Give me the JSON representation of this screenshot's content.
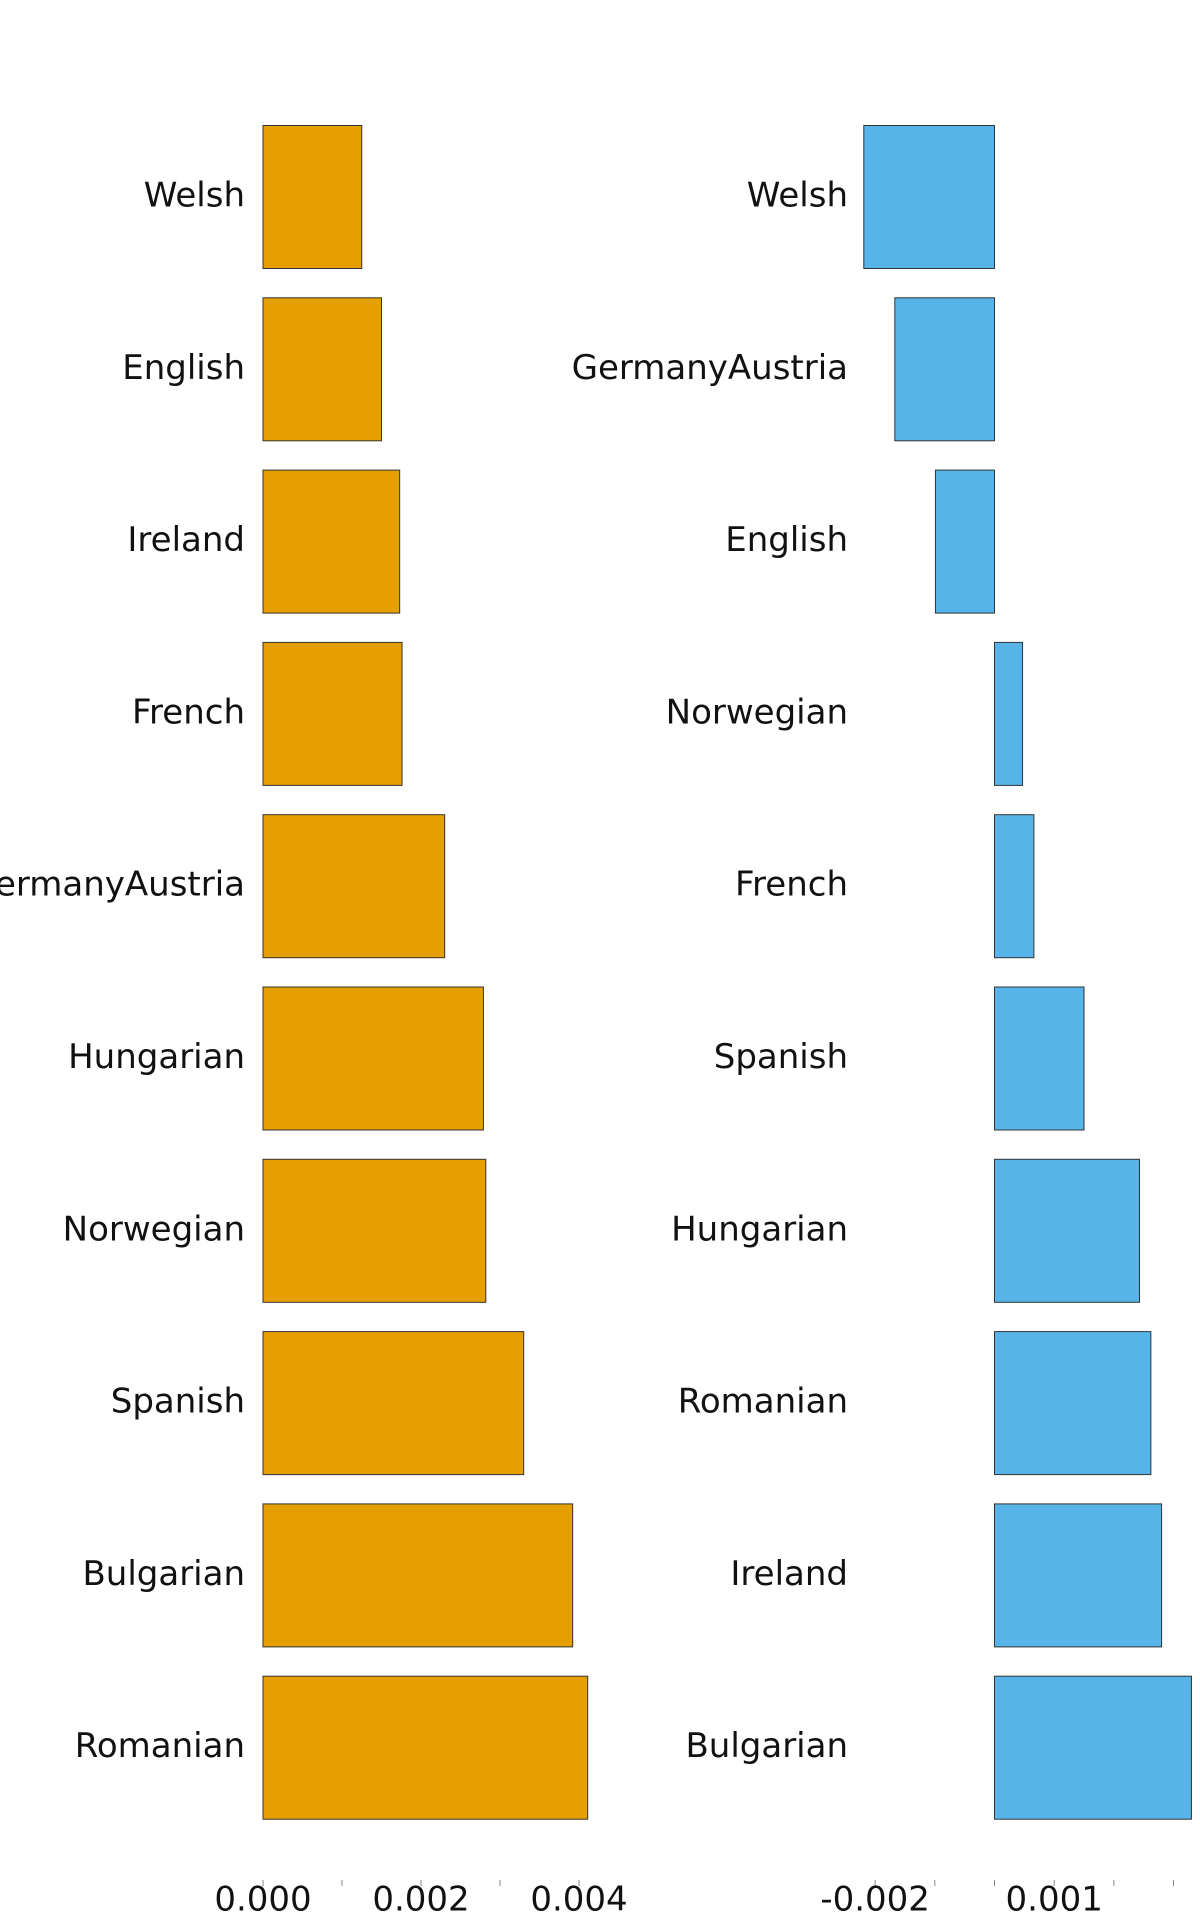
{
  "chart_data": [
    {
      "type": "barh",
      "categories": [
        "Welsh",
        "English",
        "Ireland",
        "French",
        "GermanyAustria",
        "Hungarian",
        "Norwegian",
        "Spanish",
        "Bulgarian",
        "Romanian"
      ],
      "values": [
        0.00125,
        0.0015,
        0.00173,
        0.00176,
        0.0023,
        0.00279,
        0.00282,
        0.0033,
        0.00392,
        0.00411
      ],
      "color": "#E69F00",
      "xlim": [
        0,
        0.0042
      ],
      "xticks": [
        {
          "value": 0,
          "label": "0.000"
        },
        {
          "value": 0.002,
          "label": "0.002"
        },
        {
          "value": 0.004,
          "label": "0.004"
        }
      ],
      "xminor_ticks": [
        0.001,
        0.003
      ]
    },
    {
      "type": "barh",
      "categories": [
        "Welsh",
        "GermanyAustria",
        "English",
        "Norwegian",
        "French",
        "Spanish",
        "Hungarian",
        "Romanian",
        "Ireland",
        "Bulgarian"
      ],
      "values": [
        -0.00219,
        -0.00167,
        -0.00099,
        0.00047,
        0.00066,
        0.0015,
        0.00243,
        0.00262,
        0.0028,
        0.0033
      ],
      "color": "#56B4E9",
      "xlim": [
        -0.0025,
        0.0034
      ],
      "xticks": [
        {
          "value": -0.002,
          "label": "-0.002"
        },
        {
          "value": 0.001,
          "label": "0.001"
        }
      ],
      "xminor_ticks": [
        -0.001,
        0,
        0.002,
        0.003
      ]
    }
  ]
}
